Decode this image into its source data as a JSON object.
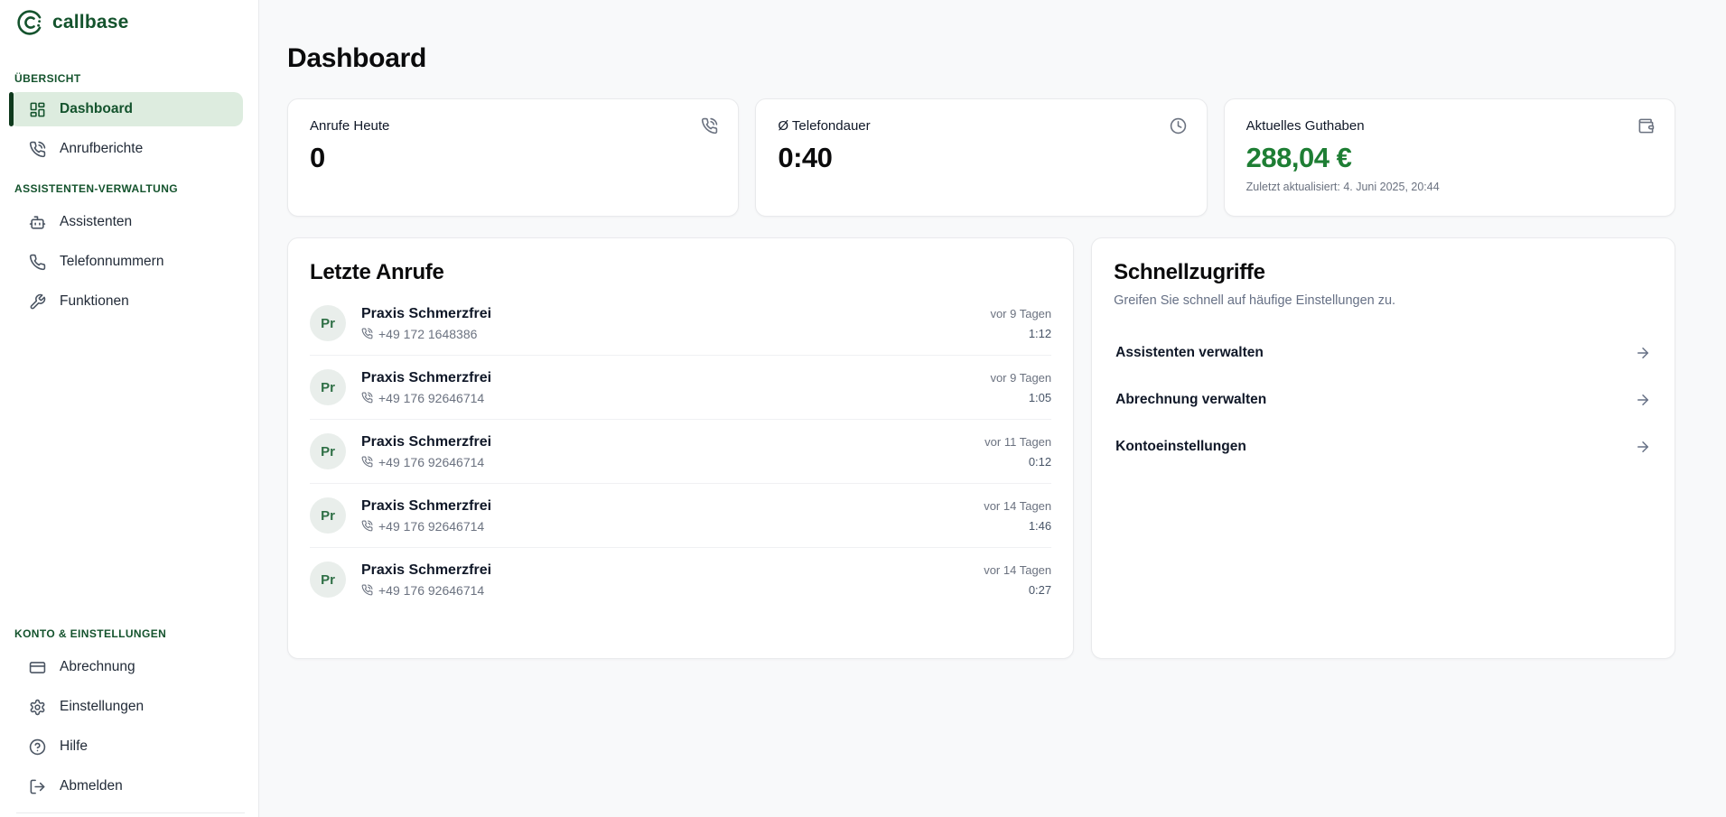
{
  "brand": {
    "name": "callbase",
    "color": "#14532d"
  },
  "colors": {
    "accent_green_dark": "#14532d",
    "active_item_bg": "#ddecdf",
    "balance_green": "#1e7e34",
    "page_bg": "#f8f9fa",
    "muted_text": "#6b7280"
  },
  "sidebar": {
    "sections": [
      {
        "label": "ÜBERSICHT",
        "items": [
          {
            "label": "Dashboard",
            "icon": "layout-dashboard",
            "active": true
          },
          {
            "label": "Anrufberichte",
            "icon": "phone-call",
            "active": false
          }
        ]
      },
      {
        "label": "ASSISTENTEN-VERWALTUNG",
        "items": [
          {
            "label": "Assistenten",
            "icon": "bot",
            "active": false
          },
          {
            "label": "Telefonnummern",
            "icon": "phone",
            "active": false
          },
          {
            "label": "Funktionen",
            "icon": "wrench",
            "active": false
          }
        ]
      },
      {
        "label": "KONTO & EINSTELLUNGEN",
        "items": [
          {
            "label": "Abrechnung",
            "icon": "credit-card",
            "active": false
          },
          {
            "label": "Einstellungen",
            "icon": "settings",
            "active": false
          },
          {
            "label": "Hilfe",
            "icon": "help-circle",
            "active": false
          },
          {
            "label": "Abmelden",
            "icon": "log-out",
            "active": false
          }
        ]
      }
    ]
  },
  "page": {
    "title": "Dashboard"
  },
  "stats": [
    {
      "label": "Anrufe Heute",
      "value": "0",
      "icon": "phone-call"
    },
    {
      "label": "Ø Telefondauer",
      "value": "0:40",
      "icon": "clock"
    },
    {
      "label": "Aktuelles Guthaben",
      "value": "288,04 €",
      "icon": "wallet",
      "subtext": "Zuletzt aktualisiert: 4. Juni 2025, 20:44"
    }
  ],
  "recent_calls": {
    "title": "Letzte Anrufe",
    "items": [
      {
        "initials": "Pr",
        "name": "Praxis Schmerzfrei",
        "phone": "+49 172 1648386",
        "ago": "vor 9 Tagen",
        "duration": "1:12"
      },
      {
        "initials": "Pr",
        "name": "Praxis Schmerzfrei",
        "phone": "+49 176 92646714",
        "ago": "vor 9 Tagen",
        "duration": "1:05"
      },
      {
        "initials": "Pr",
        "name": "Praxis Schmerzfrei",
        "phone": "+49 176 92646714",
        "ago": "vor 11 Tagen",
        "duration": "0:12"
      },
      {
        "initials": "Pr",
        "name": "Praxis Schmerzfrei",
        "phone": "+49 176 92646714",
        "ago": "vor 14 Tagen",
        "duration": "1:46"
      },
      {
        "initials": "Pr",
        "name": "Praxis Schmerzfrei",
        "phone": "+49 176 92646714",
        "ago": "vor 14 Tagen",
        "duration": "0:27"
      }
    ]
  },
  "quick_access": {
    "title": "Schnellzugriffe",
    "subtitle": "Greifen Sie schnell auf häufige Einstellungen zu.",
    "links": [
      {
        "label": "Assistenten verwalten",
        "icon": "arrow-right"
      },
      {
        "label": "Abrechnung verwalten",
        "icon": "arrow-right"
      },
      {
        "label": "Kontoeinstellungen",
        "icon": "arrow-right"
      }
    ]
  }
}
